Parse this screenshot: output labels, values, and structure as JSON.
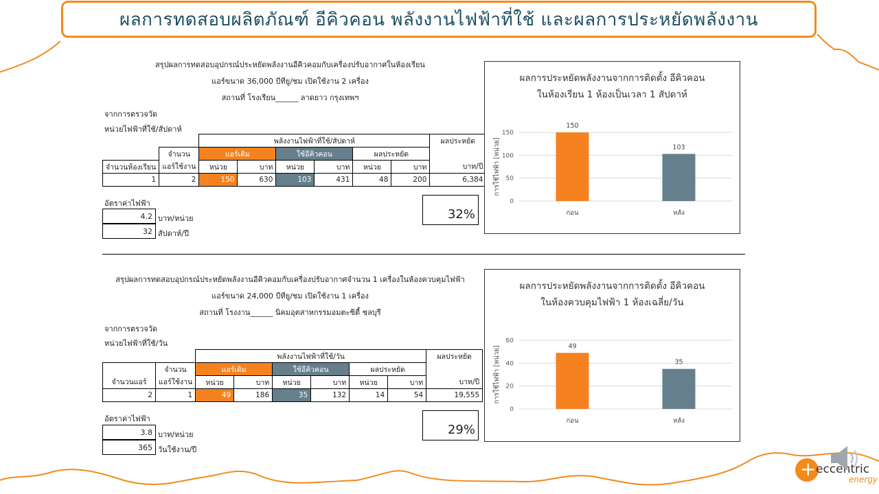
{
  "title": "ผลการทดสอบผลิตภัณฑ์ อีคิวคอน  พลังงานไฟฟ้าที่ใช้ และผลการประหยัดพลังงาน",
  "section1": {
    "heading": [
      "สรุปผลการทดสอบอุปกรณ์ประหยัดพลังงานอีคิวคอมกับเครื่องปรับอากาศในห้องเรียน",
      "แอร์ขนาด 36,000 บีทียู/ชม เปิดใช้งาน 2 เครื่อง",
      "สถานที่ โรงเรียน______ ลาดยาว กรุงเทพฯ"
    ],
    "note1": "จากการตรวจวัด",
    "note2": "หน่วยไฟฟ้าที่ใช้/สัปดาห์",
    "table": {
      "group_header": "พลังงานไฟฟ้าที่ใช้/สัปดาห์",
      "saving_header": "ผลประหยัด",
      "count_label": "จำนวน",
      "original": "แอร์เดิม",
      "with_device": "ใช้อีคิวคอน",
      "saving_sub": "ผลประหยัด",
      "room_col": "จำนวนห้องเรียน",
      "ac_col": "แอร์ใช้งาน",
      "unit": "หน่วย",
      "baht": "บาท",
      "baht_year": "บาท/ปี",
      "row": [
        "1",
        "2",
        "150",
        "630",
        "103",
        "431",
        "48",
        "200",
        "6,384"
      ]
    },
    "rate_label": "อัตราค่าไฟฟ้า",
    "rate_value": "4.2",
    "rate_unit": "บาท/หน่วย",
    "period_value": "32",
    "period_unit": "สัปดาห์/ปี",
    "percent": "32%"
  },
  "section2": {
    "heading": [
      "สรุปผลการทดสอบอุปกรณ์ประหยัดพลังงานอีคิวคอมกับเครื่องปรับอากาศจำนวน 1 เครื่องในห้องควบคุมไฟฟ้า",
      "แอร์ขนาด 24,000 บีทียู/ชม เปิดใช้งาน 1 เครื่อง",
      "สถานที่ โรงงาน______ นิคมอุตสาหกรรมอมตะซิตี้ ชลบุรี"
    ],
    "note1": "จากการตรวจวัด",
    "note2": "หน่วยไฟฟ้าที่ใช้/วัน",
    "table": {
      "group_header": "พลังงานไฟฟ้าที่ใช้/วัน",
      "saving_header": "ผลประหยัด",
      "count_label": "จำนวน",
      "original": "แอร์เดิม",
      "with_device": "ใช้อีคิวคอน",
      "saving_sub": "ผลประหยัด",
      "room_col": "จำนวนแอร์",
      "ac_col": "แอร์ใช้งาน",
      "unit": "หน่วย",
      "baht": "บาท",
      "baht_year": "บาท/ปี",
      "row": [
        "2",
        "1",
        "49",
        "186",
        "35",
        "132",
        "14",
        "54",
        "19,555"
      ]
    },
    "rate_label": "อัตราค่าไฟฟ้า",
    "rate_value": "3.8",
    "rate_unit": "บาท/หน่วย",
    "period_value": "365",
    "period_unit": "วันใช้งาน/ปี",
    "percent": "29%"
  },
  "chart_data": [
    {
      "type": "bar",
      "title": "ผลการประหยัดพลังงานจากการติดตั้ง อีคิวคอน",
      "subtitle": "ในห้องเรียน 1 ห้องเป็นเวลา 1 สัปดาห์",
      "ylabel": "การใช้ไฟฟ้า [หน่วย]",
      "categories": [
        "ก่อน",
        "หลัง"
      ],
      "values": [
        150,
        103
      ],
      "ylim": [
        0,
        150
      ],
      "yticks": [
        0,
        50,
        100,
        150
      ],
      "colors": [
        "#f5821f",
        "#667f8c"
      ],
      "grid": true
    },
    {
      "type": "bar",
      "title": "ผลการประหยัดพลังงานจากการติดตั้ง อีคิวคอน",
      "subtitle": "ในห้องควบคุมไฟฟ้า 1 ห้องเฉลี่ย/วัน",
      "ylabel": "การใช้ไฟฟ้า [หน่วย]",
      "categories": [
        "ก่อน",
        "หลัง"
      ],
      "values": [
        49,
        35
      ],
      "ylim": [
        0,
        60
      ],
      "yticks": [
        0,
        20,
        40,
        60
      ],
      "colors": [
        "#f5821f",
        "#667f8c"
      ],
      "grid": true
    }
  ],
  "logo": {
    "text": "eccentric",
    "sub": "energy",
    "speaker_icon": "speaker-icon"
  }
}
